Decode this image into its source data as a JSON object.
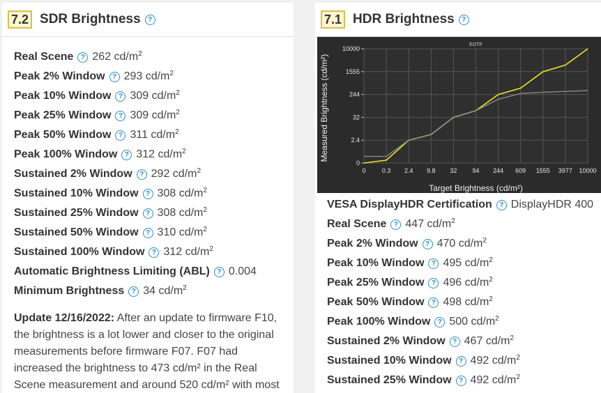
{
  "sdr": {
    "score": "7.2",
    "title": "SDR Brightness",
    "rows": [
      {
        "label": "Real Scene",
        "value": "262 cd/m",
        "unit_sup": "2"
      },
      {
        "label": "Peak 2% Window",
        "value": "293 cd/m",
        "unit_sup": "2"
      },
      {
        "label": "Peak 10% Window",
        "value": "309 cd/m",
        "unit_sup": "2"
      },
      {
        "label": "Peak 25% Window",
        "value": "309 cd/m",
        "unit_sup": "2"
      },
      {
        "label": "Peak 50% Window",
        "value": "311 cd/m",
        "unit_sup": "2"
      },
      {
        "label": "Peak 100% Window",
        "value": "312 cd/m",
        "unit_sup": "2"
      },
      {
        "label": "Sustained 2% Window",
        "value": "292 cd/m",
        "unit_sup": "2"
      },
      {
        "label": "Sustained 10% Window",
        "value": "308 cd/m",
        "unit_sup": "2"
      },
      {
        "label": "Sustained 25% Window",
        "value": "308 cd/m",
        "unit_sup": "2"
      },
      {
        "label": "Sustained 50% Window",
        "value": "310 cd/m",
        "unit_sup": "2"
      },
      {
        "label": "Sustained 100% Window",
        "value": "312 cd/m",
        "unit_sup": "2"
      },
      {
        "label": "Automatic Brightness Limiting (ABL)",
        "value": "0.004",
        "unit_sup": ""
      },
      {
        "label": "Minimum Brightness",
        "value": "34 cd/m",
        "unit_sup": "2"
      }
    ],
    "update_heading": "Update 12/16/2022:",
    "update_body": " After an update to firmware F10, the brightness is a lot lower and closer to the original measurements before firmware F07. F07 had increased the brightness to 473 cd/m² in the Real Scene measurement and around 520 cd/m² with most"
  },
  "hdr": {
    "score": "7.1",
    "title": "HDR Brightness",
    "rows": [
      {
        "label": "VESA DisplayHDR Certification",
        "value": "DisplayHDR 400",
        "unit_sup": ""
      },
      {
        "label": "Real Scene",
        "value": "447 cd/m",
        "unit_sup": "2"
      },
      {
        "label": "Peak 2% Window",
        "value": "470 cd/m",
        "unit_sup": "2"
      },
      {
        "label": "Peak 10% Window",
        "value": "495 cd/m",
        "unit_sup": "2"
      },
      {
        "label": "Peak 25% Window",
        "value": "496 cd/m",
        "unit_sup": "2"
      },
      {
        "label": "Peak 50% Window",
        "value": "498 cd/m",
        "unit_sup": "2"
      },
      {
        "label": "Peak 100% Window",
        "value": "500 cd/m",
        "unit_sup": "2"
      },
      {
        "label": "Sustained 2% Window",
        "value": "467 cd/m",
        "unit_sup": "2"
      },
      {
        "label": "Sustained 10% Window",
        "value": "492 cd/m",
        "unit_sup": "2"
      },
      {
        "label": "Sustained 25% Window",
        "value": "492 cd/m",
        "unit_sup": "2"
      }
    ]
  },
  "icons": {
    "help": "question-circle-icon"
  },
  "colors": {
    "badge_border": "#d9bf4a",
    "badge_fill": "#fdf6cf",
    "help": "#2a8ccf",
    "target_line": "#f0e524",
    "measured_line": "#8a8a8a",
    "chart_bg": "#2b2b2b"
  },
  "chart_data": {
    "type": "line",
    "title": "EOTF",
    "xlabel": "Target Brightness (cd/m²)",
    "ylabel": "Measured Brightness (cd/m²)",
    "x_ticks": [
      "0",
      "0.3",
      "2.4",
      "9.8",
      "32",
      "94",
      "244",
      "609",
      "1555",
      "3977",
      "10000"
    ],
    "y_ticks": [
      "0",
      "2.4",
      "32",
      "244",
      "1555",
      "10000"
    ],
    "grid": true,
    "series": [
      {
        "color": "#f0e524",
        "values": [
          0,
          0.3,
          2.4,
          9.8,
          32,
          94,
          244,
          609,
          1555,
          3977,
          10000
        ]
      },
      {
        "color": "#8a8a8a",
        "values": [
          0.7,
          0.7,
          2.4,
          9.8,
          32,
          94,
          200,
          300,
          370,
          420,
          470
        ]
      }
    ]
  }
}
